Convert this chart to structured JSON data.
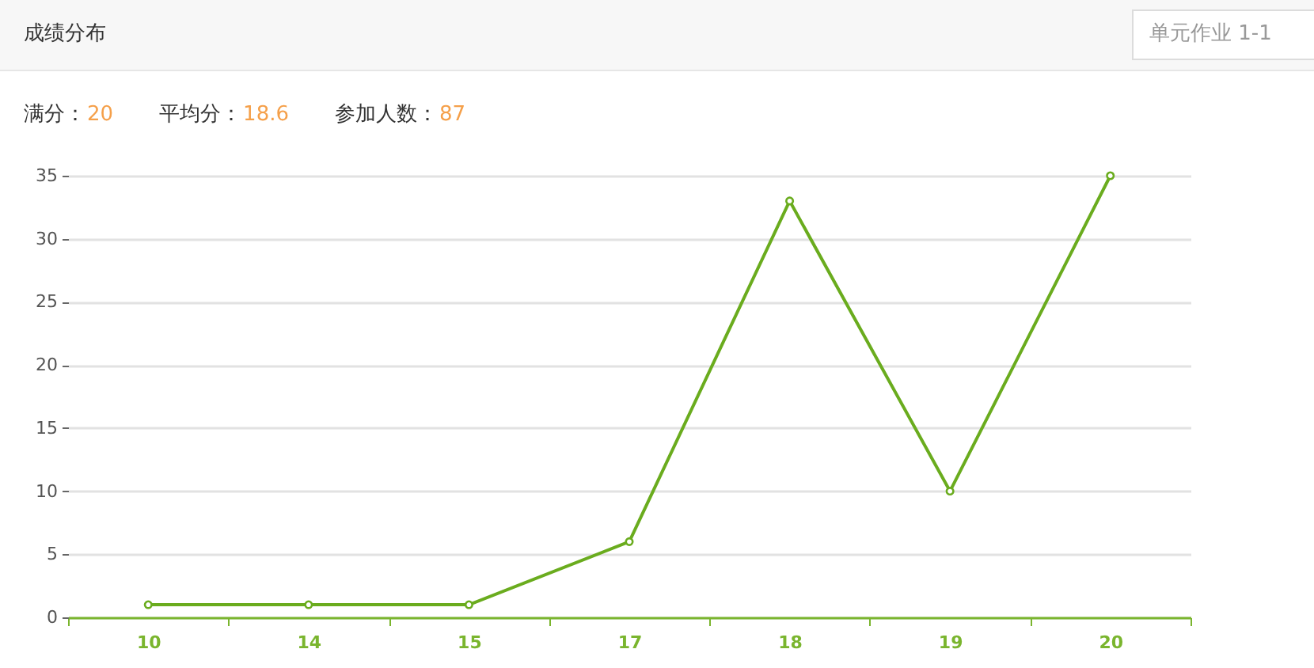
{
  "chart_data": {
    "type": "line",
    "title": "成绩分布",
    "subtitle": "单元作业 1-1",
    "annotations": [
      "满分：20",
      "平均分：18.6",
      "参加人数：87"
    ],
    "categories": [
      "10",
      "14",
      "15",
      "17",
      "18",
      "19",
      "20"
    ],
    "values": [
      1,
      1,
      1,
      6,
      33,
      10,
      35
    ],
    "color": "#6aac1e",
    "ylim": [
      0,
      35
    ],
    "yticks": [
      0,
      5,
      10,
      15,
      20,
      25,
      30,
      35
    ],
    "grid": "y",
    "marker": "circle",
    "line_style": "solid"
  }
}
